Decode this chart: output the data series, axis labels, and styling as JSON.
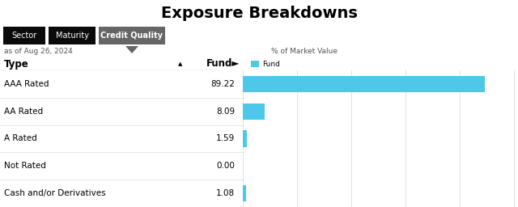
{
  "title": "Exposure Breakdowns",
  "tabs": [
    "Sector",
    "Maturity",
    "Credit Quality"
  ],
  "active_tab": "Credit Quality",
  "date_label": "as of Aug 26, 2024",
  "pct_label": "% of Market Value",
  "col_type": "Type",
  "col_fund": "Fund►",
  "col_type_arrow": "▲",
  "legend_label": "Fund",
  "categories": [
    "AAA Rated",
    "AA Rated",
    "A Rated",
    "Not Rated",
    "Cash and/or Derivatives"
  ],
  "values": [
    89.22,
    8.09,
    1.59,
    0.0,
    1.08
  ],
  "bar_color": "#4DC8E8",
  "background_color": "#ffffff",
  "tab_bar_color": "#0a0a0a",
  "active_tab_color": "#666666",
  "tab_text_color": "#ffffff",
  "grid_color": "#dddddd",
  "text_color": "#000000",
  "muted_color": "#555555",
  "separator_color": "#333333",
  "xlim": [
    0,
    100
  ],
  "title_fontsize": 14,
  "body_fontsize": 7.5,
  "tab_fontsize": 7,
  "header_fontsize": 8.5
}
